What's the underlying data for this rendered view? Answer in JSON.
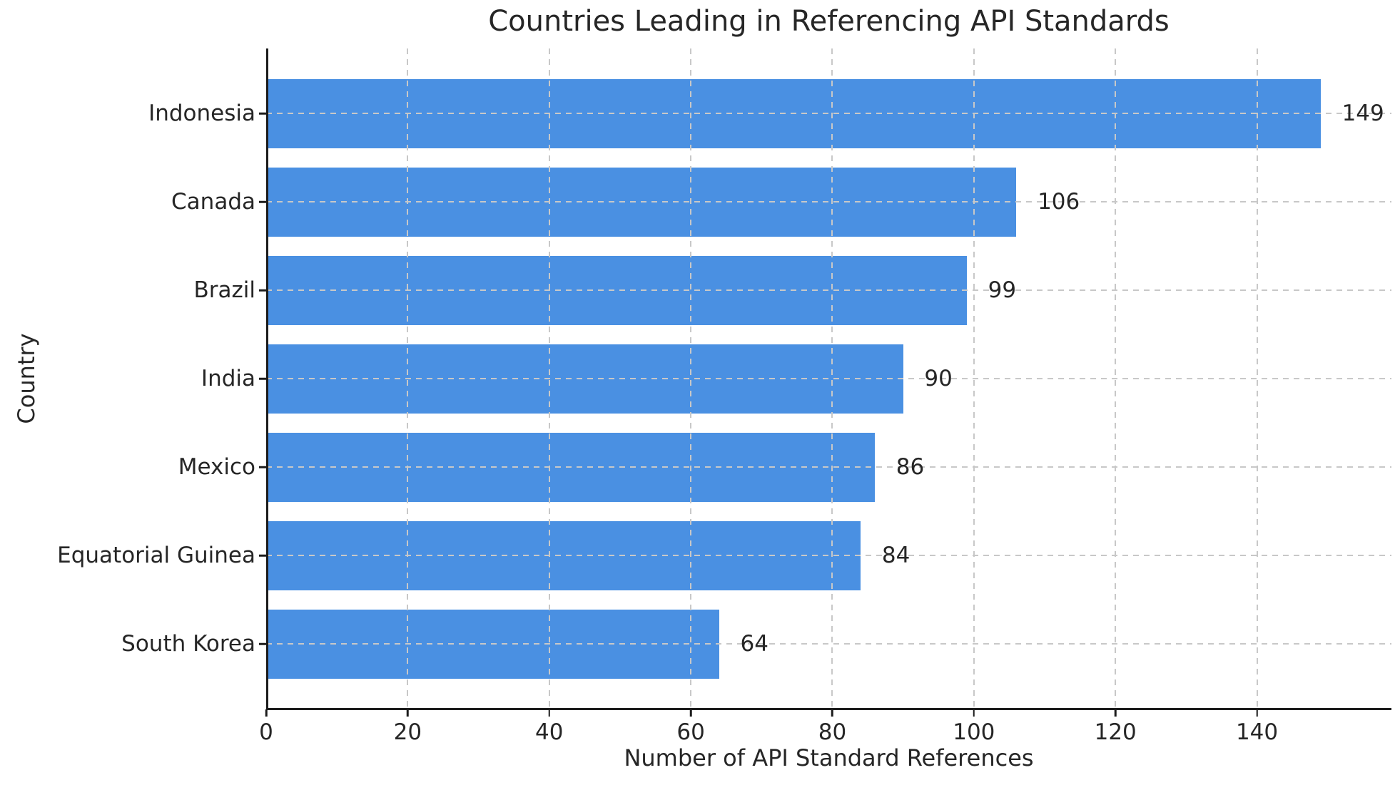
{
  "chart_data": {
    "type": "bar",
    "orientation": "horizontal",
    "title": "Countries Leading in Referencing API Standards",
    "xlabel": "Number of API Standard References",
    "ylabel": "Country",
    "categories": [
      "Indonesia",
      "Canada",
      "Brazil",
      "India",
      "Mexico",
      "Equatorial Guinea",
      "South Korea"
    ],
    "values": [
      149,
      106,
      99,
      90,
      86,
      84,
      64
    ],
    "value_labels": [
      "149",
      "106",
      "99",
      "90",
      "86",
      "84",
      "64"
    ],
    "xticks": [
      0,
      20,
      40,
      60,
      80,
      100,
      120,
      140
    ],
    "xtick_labels": [
      "0",
      "20",
      "40",
      "60",
      "80",
      "100",
      "120",
      "140"
    ],
    "xlim": [
      0,
      159
    ],
    "grid": "dashed",
    "grid_above_bars": true,
    "legend_position": "none",
    "value_label_offset_units": 3
  },
  "colors": {
    "bar": "#4A90E2",
    "grid": "#c8c8c8",
    "spine": "#1c1c1c",
    "text": "#262626",
    "background": "#ffffff"
  }
}
